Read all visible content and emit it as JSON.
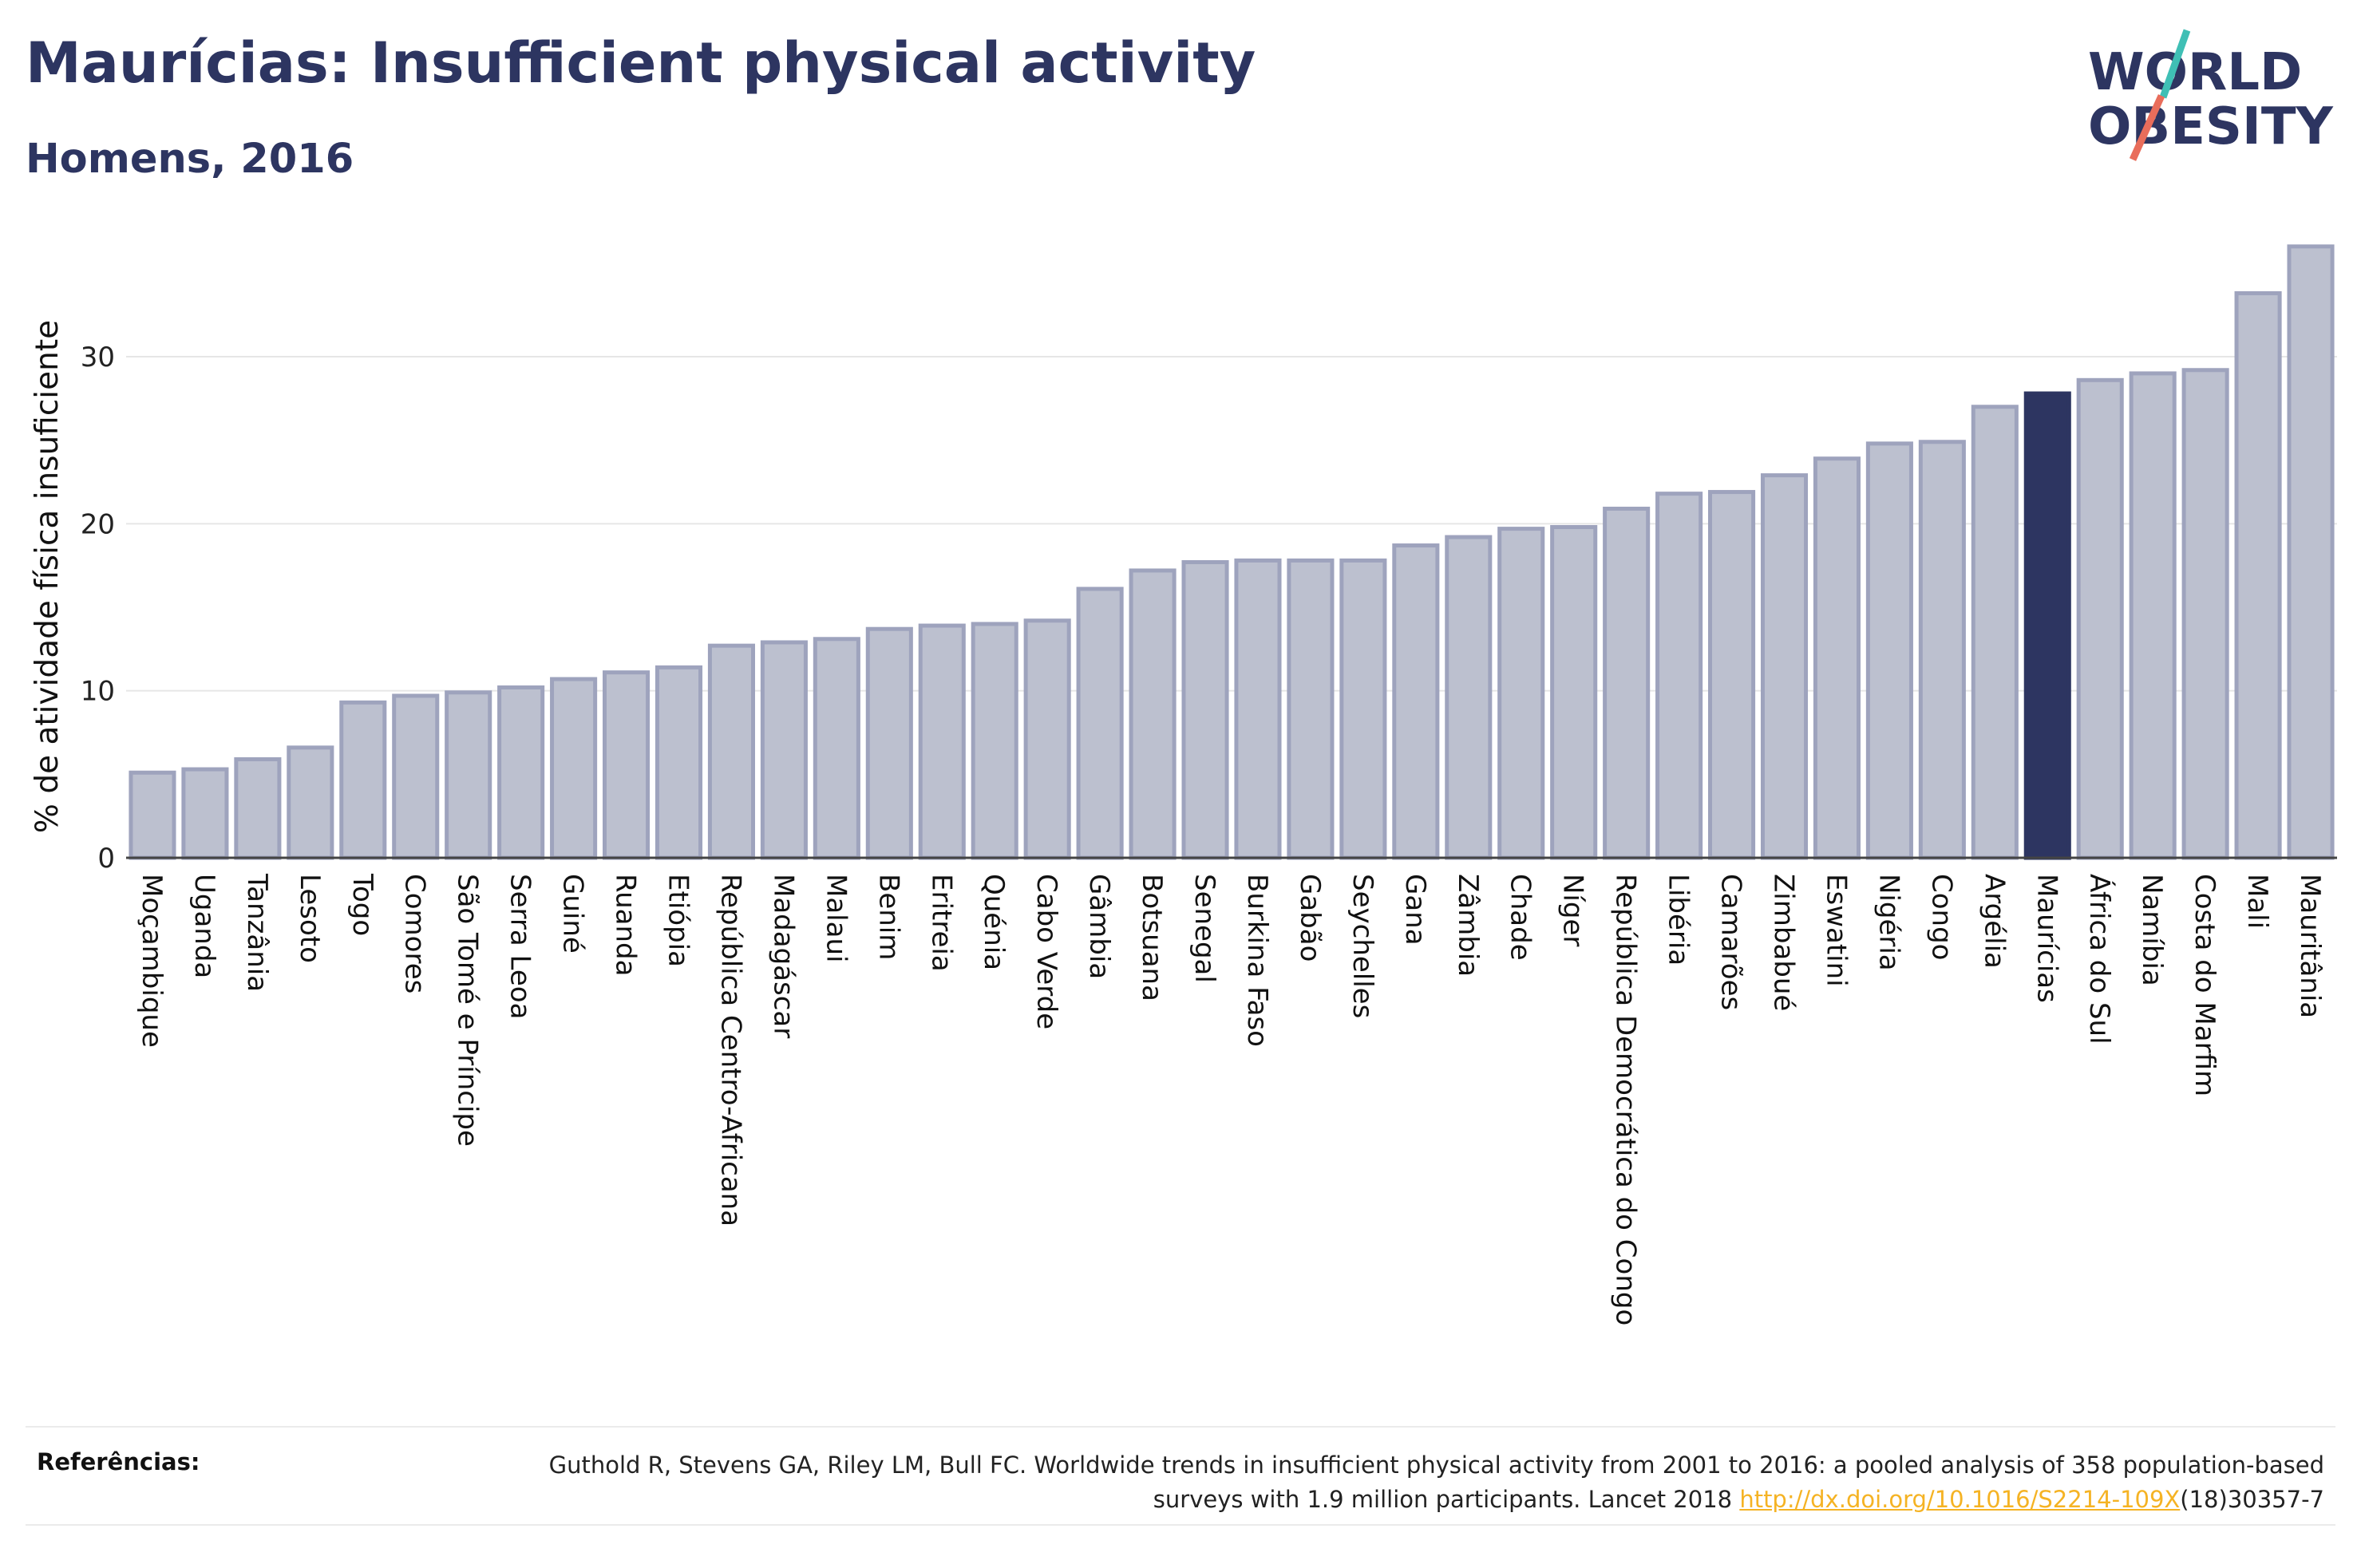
{
  "title": "Maurícias: Insufficient physical activity",
  "subtitle": "Homens, 2016",
  "logo": {
    "line1": "WORLD",
    "line2": "OBESITY",
    "icon": "world-obesity-logo"
  },
  "colors": {
    "bar": "#bcc0cf",
    "bar_stroke": "#9ea3bd",
    "highlight": "#2d3561",
    "text": "#2d3561",
    "grid": "#e6e6e6",
    "link": "#f5b324"
  },
  "chart_data": {
    "type": "bar",
    "title": "Maurícias: Insufficient physical activity",
    "subtitle": "Homens, 2016",
    "ylabel": "% de atividade física insuficiente",
    "xlabel": "",
    "ylim": [
      0,
      37.5
    ],
    "yticks": [
      0,
      10,
      20,
      30
    ],
    "grid": true,
    "highlight": "Maurícias",
    "categories": [
      "Moçambique",
      "Uganda",
      "Tanzânia",
      "Lesoto",
      "Togo",
      "Comores",
      "São Tomé e Príncipe",
      "Serra Leoa",
      "Guiné",
      "Ruanda",
      "Etiópia",
      "República Centro-Africana",
      "Madagáscar",
      "Malaui",
      "Benim",
      "Eritreia",
      "Quénia",
      "Cabo Verde",
      "Gâmbia",
      "Botsuana",
      "Senegal",
      "Burkina Faso",
      "Gabão",
      "Seychelles",
      "Gana",
      "Zâmbia",
      "Chade",
      "Níger",
      "República Democrática do Congo",
      "Libéria",
      "Camarões",
      "Zimbabué",
      "Eswatini",
      "Nigéria",
      "Congo",
      "Argélia",
      "Maurícias",
      "África do Sul",
      "Namíbia",
      "Costa do Marfim",
      "Mali",
      "Mauritânia"
    ],
    "values": [
      5.1,
      5.3,
      5.9,
      6.6,
      9.3,
      9.7,
      9.9,
      10.2,
      10.7,
      11.1,
      11.4,
      12.7,
      12.9,
      13.1,
      13.7,
      13.9,
      14.0,
      14.2,
      16.1,
      17.2,
      17.7,
      17.8,
      17.8,
      17.8,
      18.7,
      19.2,
      19.7,
      19.8,
      20.9,
      21.8,
      21.9,
      22.9,
      23.9,
      24.8,
      24.9,
      27.0,
      27.8,
      28.6,
      29.0,
      29.2,
      33.8,
      36.6
    ]
  },
  "references": {
    "label": "Referências:",
    "text_before": "Guthold R, Stevens GA, Riley LM, Bull FC. Worldwide trends in insufficient physical activity from 2001 to 2016: a pooled analysis of 358 population-based surveys with 1.9 million participants. Lancet 2018 ",
    "link": "http://dx.doi.org/10.1016/S2214-109X",
    "text_after": "(18)30357-7"
  }
}
